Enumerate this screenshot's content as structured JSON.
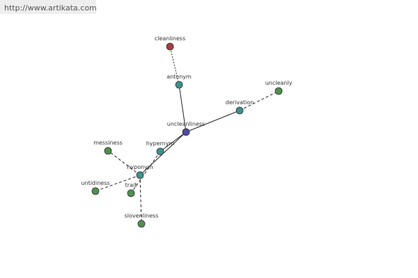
{
  "header": {
    "url": "http://www.artikata.com"
  },
  "nodes": [
    {
      "label": "uncleanliness"
    },
    {
      "label": "antonym"
    },
    {
      "label": "cleanliness"
    },
    {
      "label": "derivation"
    },
    {
      "label": "uncleanly"
    },
    {
      "label": "hypernym"
    },
    {
      "label": "hyponym"
    },
    {
      "label": "messiness"
    },
    {
      "label": "untidiness"
    },
    {
      "label": "trait"
    },
    {
      "label": "slovenliness"
    }
  ]
}
